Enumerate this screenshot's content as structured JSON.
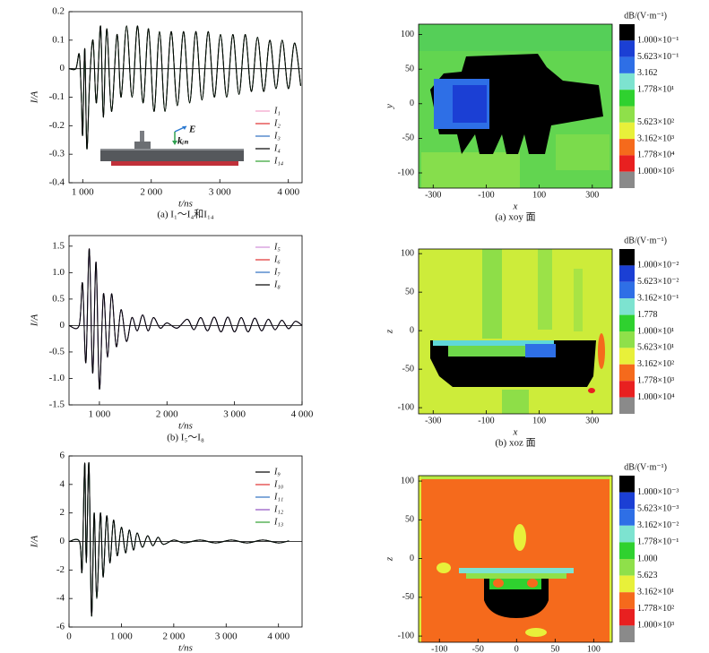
{
  "chart_data": [
    {
      "type": "line",
      "caption": "(a) I₁～I₄和I₁₄",
      "xlabel": "t/ns",
      "ylabel": "I/A",
      "annotations": [
        "E",
        "kᵢₙ"
      ],
      "xlim": [
        800,
        4200
      ],
      "ylim": [
        -0.4,
        0.2
      ],
      "xticks": [
        {
          "value": 1000,
          "label": "1 000"
        },
        {
          "value": 2000,
          "label": "2 000"
        },
        {
          "value": 3000,
          "label": "3 000"
        },
        {
          "value": 4000,
          "label": "4 000"
        }
      ],
      "yticks": [
        0.2,
        0.1,
        0,
        -0.1,
        -0.2,
        -0.3,
        -0.4
      ],
      "x": [
        800,
        900,
        950,
        980,
        1000,
        1030,
        1060,
        1100,
        1150,
        1200,
        1260,
        1300,
        1350,
        1420,
        1500,
        1560,
        1640,
        1720,
        1800,
        1880,
        1960,
        2040,
        2120,
        2200,
        2290,
        2380,
        2470,
        2560,
        2650,
        2740,
        2830,
        2920,
        3010,
        3100,
        3190,
        3280,
        3370,
        3460,
        3550,
        3640,
        3730,
        3820,
        3910,
        4000,
        4090,
        4180
      ],
      "series": [
        {
          "name": "I₁",
          "color": "#f4a0c8",
          "values": [
            0,
            0,
            0.05,
            -0.1,
            -0.23,
            0.07,
            -0.28,
            -0.05,
            0.1,
            -0.12,
            0.15,
            -0.17,
            0.14,
            -0.15,
            0.12,
            -0.1,
            0.15,
            -0.1,
            0.15,
            -0.12,
            0.14,
            -0.15,
            0.13,
            -0.15,
            0.13,
            -0.13,
            0.13,
            -0.12,
            0.13,
            -0.11,
            0.13,
            -0.1,
            0.12,
            -0.1,
            0.12,
            -0.09,
            0.12,
            -0.08,
            0.11,
            -0.08,
            0.1,
            -0.07,
            0.1,
            -0.07,
            0.09,
            -0.06
          ]
        },
        {
          "name": "I₂",
          "color": "#e03030",
          "values": [
            0,
            0,
            0.05,
            -0.1,
            -0.23,
            0.07,
            -0.28,
            -0.05,
            0.1,
            -0.12,
            0.15,
            -0.17,
            0.14,
            -0.15,
            0.12,
            -0.1,
            0.15,
            -0.1,
            0.15,
            -0.12,
            0.14,
            -0.15,
            0.13,
            -0.15,
            0.13,
            -0.13,
            0.13,
            -0.12,
            0.13,
            -0.11,
            0.13,
            -0.1,
            0.12,
            -0.1,
            0.12,
            -0.09,
            0.12,
            -0.08,
            0.11,
            -0.08,
            0.1,
            -0.07,
            0.1,
            -0.07,
            0.09,
            -0.06
          ]
        },
        {
          "name": "I₃",
          "color": "#3070c0",
          "values": [
            0,
            0,
            0.05,
            -0.1,
            -0.23,
            0.07,
            -0.28,
            -0.05,
            0.1,
            -0.12,
            0.15,
            -0.17,
            0.14,
            -0.15,
            0.12,
            -0.1,
            0.15,
            -0.1,
            0.15,
            -0.12,
            0.14,
            -0.15,
            0.13,
            -0.15,
            0.13,
            -0.13,
            0.13,
            -0.12,
            0.13,
            -0.11,
            0.13,
            -0.1,
            0.12,
            -0.1,
            0.12,
            -0.09,
            0.12,
            -0.08,
            0.11,
            -0.08,
            0.1,
            -0.07,
            0.1,
            -0.07,
            0.09,
            -0.06
          ]
        },
        {
          "name": "I₄",
          "color": "#000000",
          "values": [
            0,
            0,
            0.05,
            -0.1,
            -0.23,
            0.07,
            -0.28,
            -0.05,
            0.1,
            -0.12,
            0.15,
            -0.17,
            0.14,
            -0.15,
            0.12,
            -0.1,
            0.15,
            -0.1,
            0.15,
            -0.12,
            0.14,
            -0.15,
            0.13,
            -0.15,
            0.13,
            -0.13,
            0.13,
            -0.12,
            0.13,
            -0.11,
            0.13,
            -0.1,
            0.12,
            -0.1,
            0.12,
            -0.09,
            0.12,
            -0.08,
            0.11,
            -0.08,
            0.1,
            -0.07,
            0.1,
            -0.07,
            0.09,
            -0.06
          ]
        },
        {
          "name": "I₁₄",
          "color": "#30a030",
          "values": [
            0,
            0,
            0.05,
            -0.1,
            -0.23,
            0.07,
            -0.28,
            -0.05,
            0.1,
            -0.12,
            0.15,
            -0.17,
            0.14,
            -0.15,
            0.12,
            -0.1,
            0.15,
            -0.1,
            0.15,
            -0.12,
            0.14,
            -0.15,
            0.13,
            -0.15,
            0.13,
            -0.13,
            0.13,
            -0.12,
            0.13,
            -0.11,
            0.13,
            -0.1,
            0.12,
            -0.1,
            0.12,
            -0.09,
            0.12,
            -0.08,
            0.11,
            -0.08,
            0.1,
            -0.07,
            0.1,
            -0.07,
            0.09,
            -0.06
          ]
        }
      ]
    },
    {
      "type": "line",
      "caption": "(b) I₅～I₈",
      "xlabel": "t/ns",
      "ylabel": "I/A",
      "xlim": [
        550,
        4000
      ],
      "ylim": [
        -1.5,
        1.7
      ],
      "xticks": [
        {
          "value": 1000,
          "label": "1 000"
        },
        {
          "value": 2000,
          "label": "2 000"
        },
        {
          "value": 3000,
          "label": "3 000"
        },
        {
          "value": 4000,
          "label": "4 000"
        }
      ],
      "yticks": [
        1.5,
        {
          "value": 1,
          "label": "1.0"
        },
        0.5,
        0,
        -0.5,
        {
          "value": -1,
          "label": "-1.0"
        },
        -1.5
      ],
      "x": [
        550,
        700,
        750,
        800,
        850,
        900,
        950,
        1000,
        1060,
        1120,
        1180,
        1250,
        1320,
        1400,
        1480,
        1560,
        1640,
        1720,
        1800,
        1900,
        2000,
        2150,
        2300,
        2400,
        2500,
        2600,
        2700,
        2800,
        2900,
        3000,
        3100,
        3200,
        3300,
        3400,
        3500,
        3600,
        3700,
        3800,
        3900,
        4000
      ],
      "series": [
        {
          "name": "I₅",
          "color": "#d090d8",
          "values": [
            0,
            0,
            0.8,
            -0.7,
            1.45,
            -0.9,
            1.2,
            -1.2,
            0.6,
            -0.6,
            0.6,
            -0.4,
            0.3,
            -0.3,
            0.15,
            -0.1,
            0.2,
            -0.1,
            0.15,
            -0.05,
            0.05,
            -0.05,
            0.12,
            -0.08,
            0.15,
            -0.1,
            0.16,
            -0.12,
            0.16,
            -0.12,
            0.15,
            -0.12,
            0.14,
            -0.1,
            0.12,
            -0.08,
            0.1,
            -0.06,
            0.08,
            0
          ]
        },
        {
          "name": "I₆",
          "color": "#e03030",
          "values": [
            0,
            0,
            0.8,
            -0.7,
            1.45,
            -0.9,
            1.2,
            -1.2,
            0.6,
            -0.6,
            0.6,
            -0.4,
            0.3,
            -0.3,
            0.15,
            -0.1,
            0.2,
            -0.1,
            0.15,
            -0.05,
            0.05,
            -0.05,
            0.12,
            -0.08,
            0.15,
            -0.1,
            0.16,
            -0.12,
            0.16,
            -0.12,
            0.15,
            -0.12,
            0.14,
            -0.1,
            0.12,
            -0.08,
            0.1,
            -0.06,
            0.08,
            0
          ]
        },
        {
          "name": "I₇",
          "color": "#3070c0",
          "values": [
            0,
            0,
            0.8,
            -0.7,
            1.45,
            -0.9,
            1.2,
            -1.2,
            0.6,
            -0.6,
            0.6,
            -0.4,
            0.3,
            -0.3,
            0.15,
            -0.1,
            0.2,
            -0.1,
            0.15,
            -0.05,
            0.05,
            -0.05,
            0.12,
            -0.08,
            0.15,
            -0.1,
            0.16,
            -0.12,
            0.16,
            -0.12,
            0.15,
            -0.12,
            0.14,
            -0.1,
            0.12,
            -0.08,
            0.1,
            -0.06,
            0.08,
            0
          ]
        },
        {
          "name": "I₈",
          "color": "#000000",
          "values": [
            0,
            0,
            0.8,
            -0.7,
            1.45,
            -0.9,
            1.2,
            -1.2,
            0.6,
            -0.6,
            0.6,
            -0.4,
            0.3,
            -0.3,
            0.15,
            -0.1,
            0.2,
            -0.1,
            0.15,
            -0.05,
            0.05,
            -0.05,
            0.12,
            -0.08,
            0.15,
            -0.1,
            0.16,
            -0.12,
            0.16,
            -0.12,
            0.15,
            -0.12,
            0.14,
            -0.1,
            0.12,
            -0.08,
            0.1,
            -0.06,
            0.08,
            0
          ]
        }
      ]
    },
    {
      "type": "line",
      "xlabel": "t/ns",
      "ylabel": "I/A",
      "xlim": [
        0,
        4450
      ],
      "ylim": [
        -6,
        6
      ],
      "xticks": [
        0,
        {
          "value": 1000,
          "label": "1 000"
        },
        {
          "value": 2000,
          "label": "2 000"
        },
        {
          "value": 3000,
          "label": "3 000"
        },
        {
          "value": 4000,
          "label": "4 000"
        }
      ],
      "yticks": [
        6,
        4,
        2,
        0,
        -2,
        -4,
        -6
      ],
      "x": [
        0,
        200,
        250,
        300,
        330,
        380,
        430,
        480,
        530,
        600,
        650,
        720,
        780,
        850,
        920,
        1000,
        1080,
        1150,
        1230,
        1300,
        1400,
        1500,
        1600,
        1700,
        1800,
        2000,
        2200,
        2500,
        2800,
        3100,
        3400,
        3700,
        4000,
        4200
      ],
      "series": [
        {
          "name": "I₉",
          "color": "#000000",
          "values": [
            0,
            0,
            -2,
            5.5,
            -1.5,
            5.5,
            -5.2,
            2,
            -4,
            2,
            -2.5,
            1.8,
            -1.5,
            1.5,
            -1,
            1,
            -0.8,
            0.8,
            -0.6,
            0.6,
            -0.4,
            0.4,
            -0.3,
            0.3,
            -0.2,
            0.1,
            -0.1,
            0.1,
            -0.1,
            0.1,
            -0.1,
            0.1,
            -0.1,
            0.05
          ]
        },
        {
          "name": "I₁₀",
          "color": "#e03030",
          "values": [
            0,
            0,
            -2,
            5.5,
            -1.5,
            5.5,
            -5.2,
            2,
            -4,
            2,
            -2.5,
            1.8,
            -1.5,
            1.5,
            -1,
            1,
            -0.8,
            0.8,
            -0.6,
            0.6,
            -0.4,
            0.4,
            -0.3,
            0.3,
            -0.2,
            0.1,
            -0.1,
            0.1,
            -0.1,
            0.1,
            -0.1,
            0.1,
            -0.1,
            0.05
          ]
        },
        {
          "name": "I₁₁",
          "color": "#3070c0",
          "values": [
            0,
            0,
            -2,
            5.5,
            -1.5,
            5.5,
            -5.2,
            2,
            -4,
            2,
            -2.5,
            1.8,
            -1.5,
            1.5,
            -1,
            1,
            -0.8,
            0.8,
            -0.6,
            0.6,
            -0.4,
            0.4,
            -0.3,
            0.3,
            -0.2,
            0.1,
            -0.1,
            0.1,
            -0.1,
            0.1,
            -0.1,
            0.1,
            -0.1,
            0.05
          ]
        },
        {
          "name": "I₁₂",
          "color": "#9050c0",
          "values": [
            0,
            0,
            -2,
            5.5,
            -1.5,
            5.5,
            -5.2,
            2,
            -4,
            2,
            -2.5,
            1.8,
            -1.5,
            1.5,
            -1,
            1,
            -0.8,
            0.8,
            -0.6,
            0.6,
            -0.4,
            0.4,
            -0.3,
            0.3,
            -0.2,
            0.1,
            -0.1,
            0.1,
            -0.1,
            0.1,
            -0.1,
            0.1,
            -0.1,
            0.05
          ]
        },
        {
          "name": "I₁₃",
          "color": "#30a030",
          "values": [
            0,
            0,
            -2,
            5.5,
            -1.5,
            5.5,
            -5.2,
            2,
            -4,
            2,
            -2.5,
            1.8,
            -1.5,
            1.5,
            -1,
            1,
            -0.8,
            0.8,
            -0.6,
            0.6,
            -0.4,
            0.4,
            -0.3,
            0.3,
            -0.2,
            0.1,
            -0.1,
            0.1,
            -0.1,
            0.1,
            -0.1,
            0.1,
            -0.1,
            0.05
          ]
        }
      ]
    },
    {
      "type": "heatmap",
      "caption": "(a) xoy 面",
      "xlabel": "x",
      "ylabel": "y",
      "xlim": [
        -355,
        375
      ],
      "ylim": [
        -122,
        115
      ],
      "xticks": [
        -300,
        -100,
        100,
        300
      ],
      "yticks": [
        100,
        50,
        0,
        -50,
        -100
      ],
      "colorbar": {
        "title": "dB/(V·m⁻¹)",
        "labels": [
          "1.000×10⁻¹",
          "5.623×10⁻¹",
          "3.162",
          "1.778×10¹",
          null,
          "5.623×10²",
          "3.162×10³",
          "1.778×10⁴",
          "1.000×10⁵"
        ],
        "colors": [
          "#000000",
          "#1b3fd4",
          "#2e6fe6",
          "#7de3d0",
          "#2fd12f",
          "#8fe04a",
          "#e8f03a",
          "#f56a1c",
          "#e82020",
          "#8a8a8a"
        ]
      }
    },
    {
      "type": "heatmap",
      "caption": "(b) xoz 面",
      "xlabel": "x",
      "ylabel": "z",
      "xlim": [
        -355,
        375
      ],
      "ylim": [
        -108,
        106
      ],
      "xticks": [
        -300,
        -100,
        100,
        300
      ],
      "yticks": [
        100,
        50,
        0,
        -50,
        -100
      ],
      "colorbar": {
        "title": "dB/(V·m⁻¹)",
        "labels": [
          "1.000×10⁻²",
          "5.623×10⁻²",
          "3.162×10⁻¹",
          "1.778",
          "1.000×10¹",
          "5.623×10¹",
          "3.162×10²",
          "1.778×10³",
          "1.000×10⁴"
        ],
        "colors": [
          "#000000",
          "#1b3fd4",
          "#2e6fe6",
          "#7de3d0",
          "#2fd12f",
          "#8fe04a",
          "#e8f03a",
          "#f56a1c",
          "#e82020",
          "#8a8a8a"
        ]
      }
    },
    {
      "type": "heatmap",
      "ylabel": "z",
      "xlim": [
        -127,
        124
      ],
      "ylim": [
        -108,
        107
      ],
      "xticks": [
        -100,
        -50,
        0,
        50,
        100
      ],
      "yticks": [
        100,
        50,
        0,
        -50,
        -100
      ],
      "colorbar": {
        "title": "dB/(V·m⁻¹)",
        "labels": [
          "1.000×10⁻³",
          "5.623×10⁻³",
          "3.162×10⁻²",
          "1.778×10⁻¹",
          "1.000",
          "5.623",
          "3.162×10¹",
          "1.778×10²",
          "1.000×10³"
        ],
        "colors": [
          "#000000",
          "#1b3fd4",
          "#2e6fe6",
          "#7de3d0",
          "#2fd12f",
          "#8fe04a",
          "#e8f03a",
          "#f56a1c",
          "#e82020",
          "#8a8a8a"
        ]
      }
    }
  ]
}
